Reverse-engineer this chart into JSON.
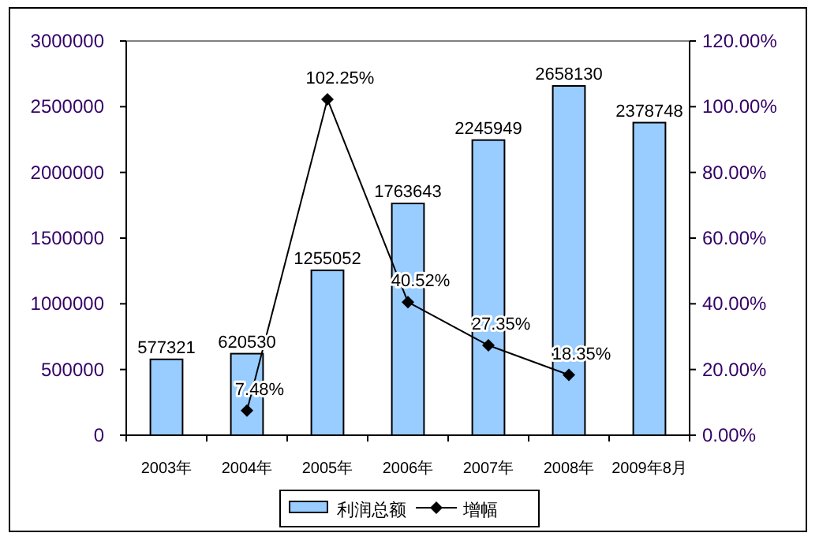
{
  "chart_data": {
    "type": "bar",
    "categories": [
      "2003年",
      "2004年",
      "2005年",
      "2006年",
      "2007年",
      "2008年",
      "2009年8月"
    ],
    "series": [
      {
        "name": "利润总额",
        "color": "#99ccff",
        "values": [
          577321,
          620530,
          1255052,
          1763643,
          2245949,
          2658130,
          2378748
        ],
        "value_labels": [
          "577321",
          "620530",
          "1255052",
          "1763643",
          "2245949",
          "2658130",
          "2378748"
        ]
      },
      {
        "name": "增幅",
        "type": "line",
        "axis": "y2",
        "color": "#000000",
        "marker": "diamond",
        "values": [
          null,
          7.48,
          102.25,
          40.52,
          27.35,
          18.35,
          null
        ],
        "value_labels": [
          null,
          "7.48%",
          "102.25%",
          "40.52%",
          "27.35%",
          "18.35%",
          null
        ]
      }
    ],
    "ylim": [
      0,
      3000000
    ],
    "yticks": [
      0,
      500000,
      1000000,
      1500000,
      2000000,
      2500000,
      3000000
    ],
    "y2lim": [
      0,
      120
    ],
    "y2ticks": [
      {
        "value": 0,
        "label": "0.00%"
      },
      {
        "value": 20,
        "label": "20.00%"
      },
      {
        "value": 40,
        "label": "40.00%"
      },
      {
        "value": 60,
        "label": "60.00%"
      },
      {
        "value": 80,
        "label": "80.00%"
      },
      {
        "value": 100,
        "label": "100.00%"
      },
      {
        "value": 120,
        "label": "120.00%"
      }
    ],
    "legend": "bottom",
    "grid": false
  }
}
